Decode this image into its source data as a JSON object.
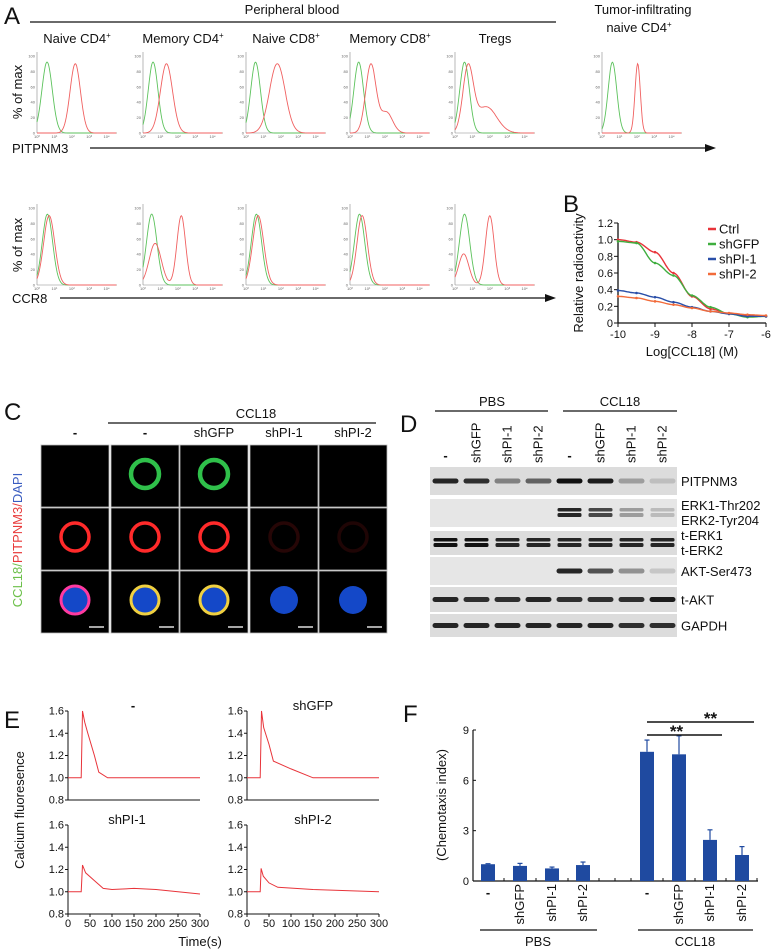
{
  "panel_letters": {
    "a": "A",
    "b": "B",
    "c": "C",
    "d": "D",
    "e": "E",
    "f": "F"
  },
  "colors": {
    "green": "#5cc25c",
    "red": "#f06060",
    "blue": "#2a4fa8",
    "orange": "#f26b3a",
    "bar": "#1f4aa0",
    "ctrl": "#e8343a"
  },
  "panel_a": {
    "group_title": "Peripheral blood",
    "tumor_title_line1": "Tumor-infiltrating",
    "tumor_title_line2": "naive CD4",
    "tumor_title_sup": "+",
    "columns": [
      {
        "name": "Naive CD4",
        "sup": "+"
      },
      {
        "name": "Memory CD4",
        "sup": "+"
      },
      {
        "name": "Naive CD8",
        "sup": "+"
      },
      {
        "name": "Memory CD8",
        "sup": "+"
      },
      {
        "name": "Tregs",
        "sup": ""
      }
    ],
    "ylabel": "% of max",
    "row1_marker": "PITPNM3",
    "row2_marker": "CCR8",
    "y_ticks": [
      "0",
      "20",
      "40",
      "60",
      "80",
      "100"
    ],
    "x_ticks": [
      "10⁰",
      "10¹",
      "10²",
      "10³",
      "10⁴"
    ]
  },
  "panel_c": {
    "group_title": "CCL18",
    "columns": [
      "-",
      "-",
      "shGFP",
      "shPI-1",
      "shPI-2"
    ],
    "ylabel_parts": [
      "CCL18",
      "/",
      "PITPNM3",
      "/",
      "DAPI"
    ],
    "ccl18_signal": [
      0,
      1,
      1,
      0,
      0
    ],
    "pitpnm3_signal": [
      1,
      1,
      1,
      0.15,
      0.12
    ],
    "merge_ring": [
      "pink",
      "yellow",
      "yellow",
      "none",
      "none"
    ]
  },
  "panel_d": {
    "groups": [
      "PBS",
      "CCL18"
    ],
    "lanes": [
      "-",
      "shGFP",
      "shPI-1",
      "shPI-2",
      "-",
      "shGFP",
      "shPI-1",
      "shPI-2"
    ],
    "rows": [
      {
        "label": "PITPNM3",
        "label2": "",
        "intensity": [
          0.9,
          0.85,
          0.45,
          0.6,
          1.0,
          0.95,
          0.3,
          0.15
        ]
      },
      {
        "label": "ERK1-Thr202",
        "label2": "ERK2-Tyr204",
        "intensity": [
          0,
          0,
          0,
          0,
          0.9,
          0.75,
          0.35,
          0.2
        ]
      },
      {
        "label": "t-ERK1",
        "label2": "t-ERK2",
        "intensity": [
          1,
          1,
          0.9,
          0.9,
          0.9,
          0.9,
          0.9,
          0.9
        ]
      },
      {
        "label": "AKT-Ser473",
        "label2": "",
        "intensity": [
          0,
          0,
          0,
          0,
          0.9,
          0.7,
          0.4,
          0.15
        ]
      },
      {
        "label": "t-AKT",
        "label2": "",
        "intensity": [
          0.9,
          0.85,
          0.85,
          0.9,
          0.85,
          0.85,
          0.85,
          0.95
        ]
      },
      {
        "label": "GAPDH",
        "label2": "",
        "intensity": [
          0.9,
          0.9,
          0.9,
          0.9,
          0.9,
          0.9,
          0.85,
          0.85
        ]
      }
    ]
  },
  "chart_data": [
    {
      "type": "line",
      "description_marker": "PITPNM3",
      "x_scale": "log",
      "ylim": [
        0,
        100
      ],
      "panels": [
        {
          "title": "Naive CD4+",
          "green": [
            [
              0.58,
              0.3,
              1
            ]
          ],
          "red": [
            [
              2.2,
              0.3,
              1
            ]
          ]
        },
        {
          "title": "Memory CD4+",
          "green": [
            [
              0.58,
              0.28,
              1
            ]
          ],
          "red": [
            [
              1.35,
              0.35,
              1
            ]
          ]
        },
        {
          "title": "Naive CD8+",
          "green": [
            [
              0.55,
              0.28,
              1
            ]
          ],
          "red": [
            [
              1.8,
              0.45,
              1
            ]
          ]
        },
        {
          "title": "Memory CD8+",
          "green": [
            [
              0.5,
              0.28,
              1
            ]
          ],
          "red": [
            [
              1.2,
              0.3,
              1
            ],
            [
              2.1,
              0.35,
              0.3
            ]
          ]
        },
        {
          "title": "Tregs",
          "green": [
            [
              0.55,
              0.28,
              1
            ]
          ],
          "red": [
            [
              0.75,
              0.3,
              0.85
            ],
            [
              1.8,
              0.6,
              0.35
            ]
          ]
        },
        {
          "title": "Tumor-infiltrating naive CD4+",
          "green": [
            [
              0.6,
              0.25,
              1
            ]
          ],
          "red": [
            [
              2.05,
              0.15,
              1
            ]
          ]
        }
      ]
    },
    {
      "type": "line",
      "description_marker": "CCR8",
      "x_scale": "log",
      "ylim": [
        0,
        100
      ],
      "panels": [
        {
          "title": "Naive CD4+",
          "green": [
            [
              0.6,
              0.3,
              1
            ]
          ],
          "red": [
            [
              0.7,
              0.32,
              1
            ]
          ]
        },
        {
          "title": "Memory CD4+",
          "green": [
            [
              0.5,
              0.3,
              1
            ]
          ],
          "red": [
            [
              0.7,
              0.35,
              0.6
            ],
            [
              2.2,
              0.25,
              1
            ]
          ]
        },
        {
          "title": "Naive CD8+",
          "green": [
            [
              0.6,
              0.3,
              1
            ]
          ],
          "red": [
            [
              0.7,
              0.32,
              0.95
            ]
          ]
        },
        {
          "title": "Memory CD8+",
          "green": [
            [
              0.55,
              0.3,
              1
            ]
          ],
          "red": [
            [
              0.7,
              0.3,
              0.9
            ]
          ]
        },
        {
          "title": "Tregs",
          "green": [
            [
              0.55,
              0.3,
              1
            ]
          ],
          "red": [
            [
              0.5,
              0.3,
              0.45
            ],
            [
              2.0,
              0.25,
              1
            ]
          ]
        }
      ]
    },
    {
      "type": "line",
      "title": "",
      "xlabel": "Log[CCL18] (M)",
      "ylabel": "Relative radioactivity",
      "xlim": [
        -10,
        -6
      ],
      "ylim": [
        0,
        1.2
      ],
      "x_ticks": [
        -10,
        -9,
        -8,
        -7,
        -6
      ],
      "y_ticks": [
        "0",
        "0.2",
        "0.4",
        "0.6",
        "0.8",
        "1.0",
        "1.2"
      ],
      "legend": "top-right",
      "x": [
        -10,
        -9.5,
        -9,
        -8.5,
        -8,
        -7.5,
        -7,
        -6.5,
        -6
      ],
      "series": [
        {
          "name": "Ctrl",
          "color": "#e8343a",
          "values": [
            1.0,
            0.97,
            0.85,
            0.6,
            0.32,
            0.17,
            0.11,
            0.09,
            0.08
          ]
        },
        {
          "name": "shGFP",
          "color": "#3fae3f",
          "values": [
            0.98,
            0.96,
            0.72,
            0.57,
            0.33,
            0.19,
            0.11,
            0.07,
            0.08
          ]
        },
        {
          "name": "shPI-1",
          "color": "#2a4fa8",
          "values": [
            0.39,
            0.36,
            0.31,
            0.25,
            0.19,
            0.14,
            0.11,
            0.08,
            0.08
          ]
        },
        {
          "name": "shPI-2",
          "color": "#f26b3a",
          "values": [
            0.32,
            0.3,
            0.26,
            0.22,
            0.18,
            0.14,
            0.12,
            0.1,
            0.09
          ]
        }
      ]
    },
    {
      "type": "line",
      "xlabel": "Time(s)",
      "ylabel": "Calcium fluoresence",
      "xlim": [
        0,
        300
      ],
      "ylim": [
        0.8,
        1.6
      ],
      "x_ticks": [
        "0",
        "50",
        "100",
        "150",
        "200",
        "250",
        "300"
      ],
      "y_ticks": [
        "0.8",
        "1.0",
        "1.2",
        "1.4",
        "1.6"
      ],
      "panels": [
        {
          "title": "-",
          "t": [
            0,
            30,
            33,
            38,
            45,
            60,
            70,
            90,
            300
          ],
          "values": [
            1.0,
            1.0,
            1.6,
            1.5,
            1.4,
            1.2,
            1.05,
            1.0,
            1.0
          ]
        },
        {
          "title": "shGFP",
          "t": [
            0,
            30,
            33,
            38,
            50,
            60,
            100,
            150,
            300
          ],
          "values": [
            1.0,
            1.0,
            1.6,
            1.45,
            1.3,
            1.15,
            1.08,
            1.0,
            1.0
          ]
        },
        {
          "title": "shPI-1",
          "t": [
            0,
            30,
            33,
            40,
            60,
            80,
            100,
            150,
            200,
            250,
            300
          ],
          "values": [
            1.0,
            1.0,
            1.24,
            1.17,
            1.1,
            1.03,
            1.02,
            1.03,
            1.02,
            1.0,
            0.98
          ]
        },
        {
          "title": "shPI-2",
          "t": [
            0,
            30,
            32,
            37,
            50,
            70,
            150,
            300
          ],
          "values": [
            1.0,
            1.0,
            1.21,
            1.14,
            1.08,
            1.04,
            1.02,
            1.0
          ]
        }
      ]
    },
    {
      "type": "bar",
      "ylabel": "(Chemotaxis index)",
      "ylim": [
        0,
        9
      ],
      "y_ticks": [
        "0",
        "3",
        "6",
        "9"
      ],
      "groups": [
        "PBS",
        "CCL18"
      ],
      "categories": [
        "-",
        "shGFP",
        "shPI-1",
        "shPI-2",
        "-",
        "shGFP",
        "shPI-1",
        "shPI-2"
      ],
      "values": [
        1.0,
        0.9,
        0.75,
        0.95,
        7.7,
        7.55,
        2.45,
        1.55
      ],
      "errors": [
        0.03,
        0.15,
        0.08,
        0.18,
        0.7,
        1.1,
        0.6,
        0.5
      ],
      "significance": [
        {
          "from": 4,
          "to": 6,
          "label": "**"
        },
        {
          "from": 4,
          "to": 7,
          "label": "**"
        }
      ]
    }
  ]
}
